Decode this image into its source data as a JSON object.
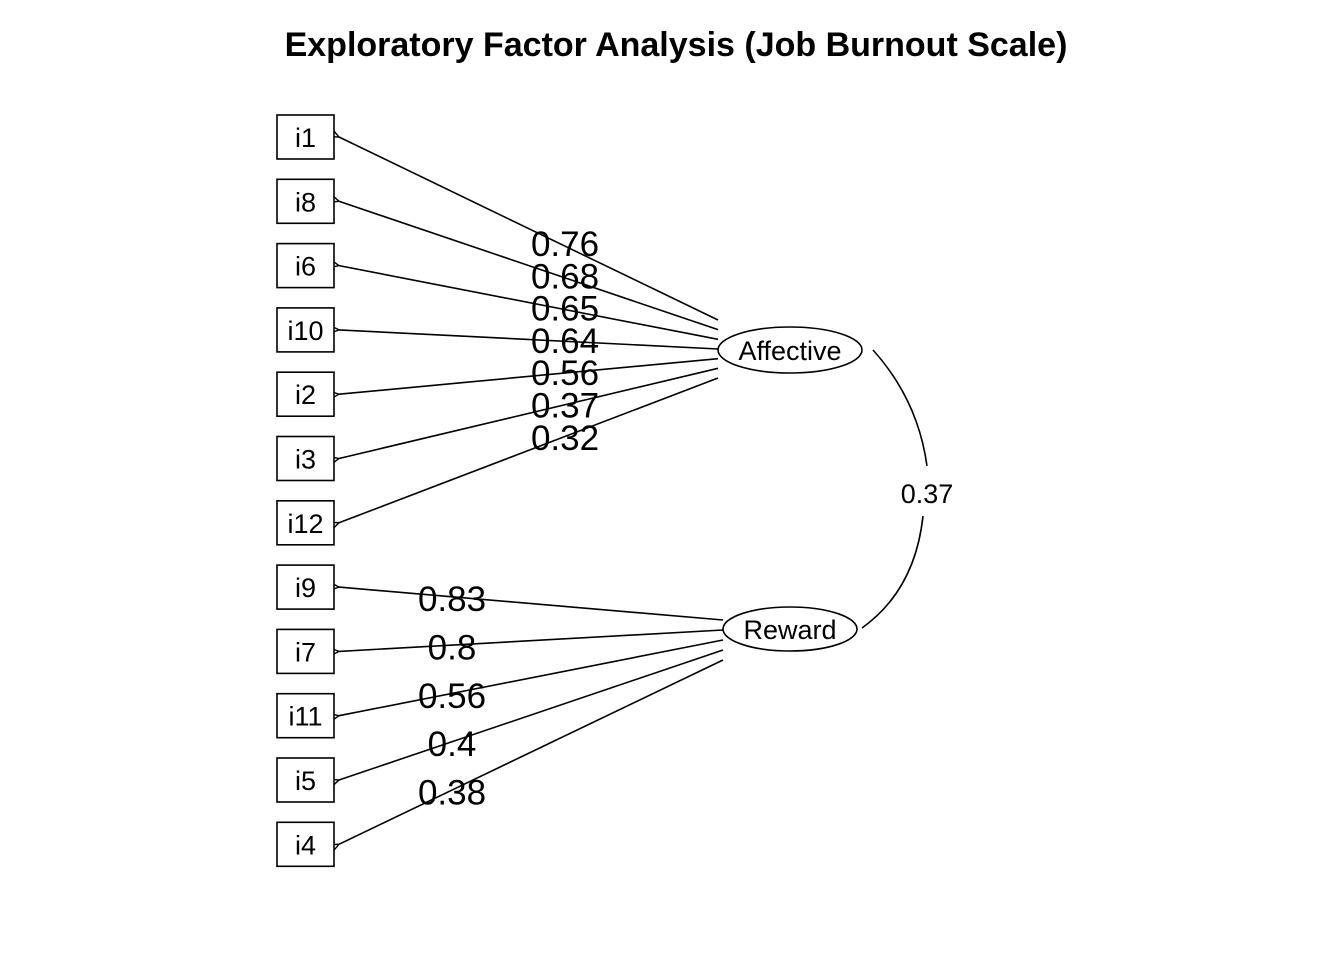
{
  "title": "Exploratory Factor Analysis (Job Burnout Scale)",
  "items": [
    "i1",
    "i8",
    "i6",
    "i10",
    "i2",
    "i3",
    "i12",
    "i9",
    "i7",
    "i11",
    "i5",
    "i4"
  ],
  "factors": [
    {
      "name": "Affective",
      "loadings": [
        {
          "item": "i1",
          "value": "0.76"
        },
        {
          "item": "i8",
          "value": "0.68"
        },
        {
          "item": "i6",
          "value": "0.65"
        },
        {
          "item": "i10",
          "value": "0.64"
        },
        {
          "item": "i2",
          "value": "0.56"
        },
        {
          "item": "i3",
          "value": "0.37"
        },
        {
          "item": "i12",
          "value": "0.32"
        }
      ]
    },
    {
      "name": "Reward",
      "loadings": [
        {
          "item": "i9",
          "value": "0.83"
        },
        {
          "item": "i7",
          "value": "0.8"
        },
        {
          "item": "i11",
          "value": "0.56"
        },
        {
          "item": "i5",
          "value": "0.4"
        },
        {
          "item": "i4",
          "value": "0.38"
        }
      ]
    }
  ],
  "factor_correlation": "0.37"
}
